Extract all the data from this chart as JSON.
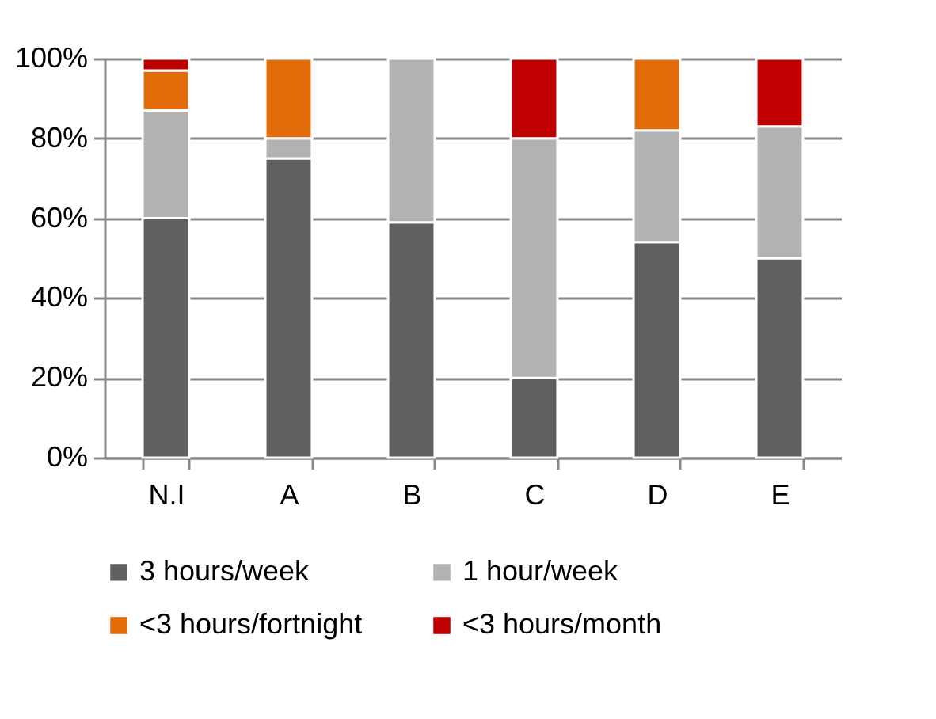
{
  "chart_data": {
    "type": "bar",
    "stacked": true,
    "categories": [
      "N.I",
      "A",
      "B",
      "C",
      "D",
      "E"
    ],
    "series": [
      {
        "name": "3 hours/week",
        "color": "#606060",
        "values": [
          60,
          75,
          59,
          20,
          54,
          50
        ]
      },
      {
        "name": "1 hour/week",
        "color": "#b2b2b2",
        "values": [
          27,
          5,
          41,
          60,
          28,
          33
        ]
      },
      {
        "name": "<3 hours/fortnight",
        "color": "#e36c0a",
        "values": [
          10,
          20,
          0,
          0,
          18,
          0
        ]
      },
      {
        "name": "<3 hours/month",
        "color": "#c00000",
        "values": [
          3,
          0,
          0,
          20,
          0,
          17
        ]
      }
    ],
    "ylim": [
      0,
      100
    ],
    "yticks": [
      {
        "value": 0,
        "label": "0%"
      },
      {
        "value": 20,
        "label": "20%"
      },
      {
        "value": 40,
        "label": "40%"
      },
      {
        "value": 60,
        "label": "60%"
      },
      {
        "value": 80,
        "label": "80%"
      },
      {
        "value": 100,
        "label": "100%"
      }
    ],
    "grid": "y",
    "legend": "bottom"
  }
}
